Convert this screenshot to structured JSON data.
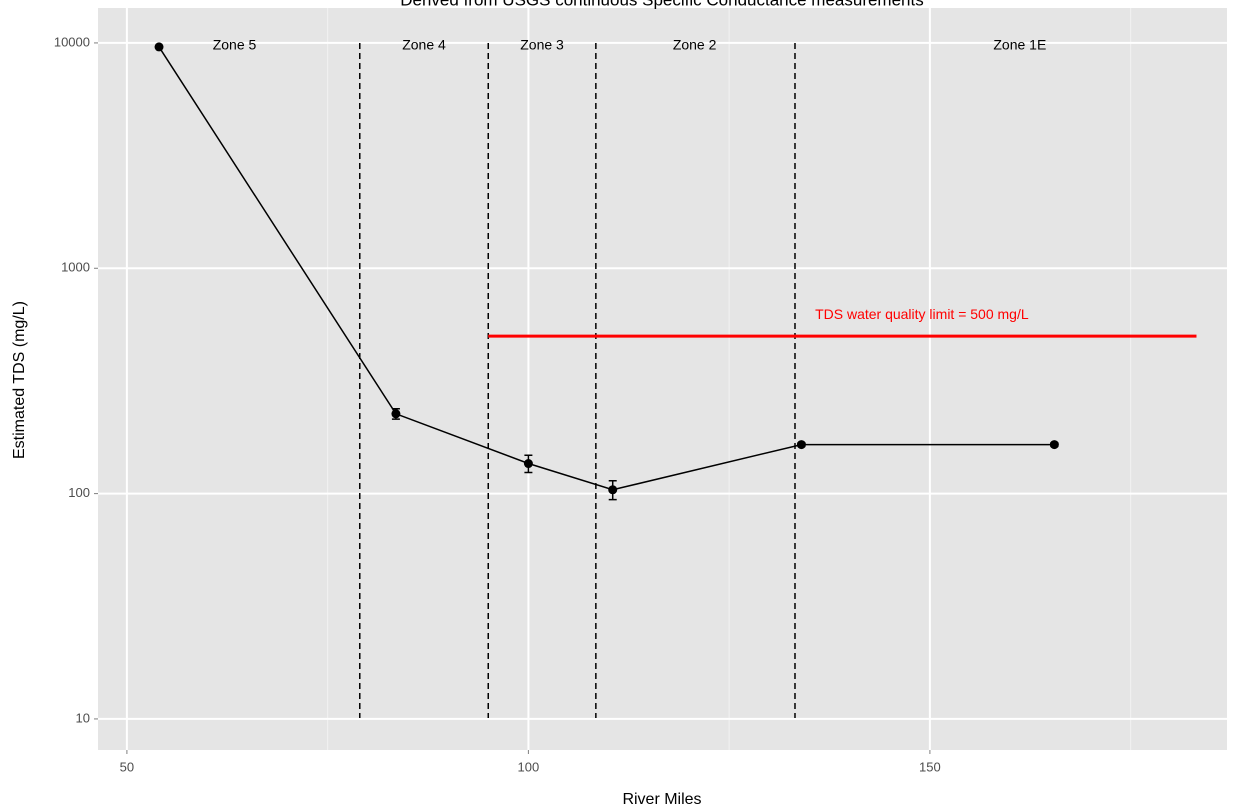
{
  "chart_data": {
    "type": "line",
    "title": "Derived from USGS continuous Specific Conductance measurements",
    "x_label": "River Miles",
    "y_label": "Estimated TDS (mg/L)",
    "x": [
      54,
      83.5,
      100,
      110.5,
      134,
      165.5
    ],
    "values": [
      9600,
      226,
      136,
      104,
      165,
      165
    ],
    "errors": [
      0,
      12,
      12,
      10,
      3,
      3
    ],
    "color": "#000000",
    "xlim": [
      46.4,
      187
    ],
    "ylim": [
      7.28,
      14290
    ],
    "log_y": true,
    "xticks": [
      50,
      100,
      150
    ],
    "x_minor_ticks": [
      75,
      125,
      175
    ],
    "yticks": [
      10,
      100,
      1000,
      10000
    ],
    "grid": true,
    "boundaries": [
      79,
      95,
      108.4,
      133.2
    ],
    "zones": [
      {
        "label": "Zone 5",
        "x": 63.4
      },
      {
        "label": "Zone 4",
        "x": 87
      },
      {
        "label": "Zone 3",
        "x": 101.7
      },
      {
        "label": "Zone 2",
        "x": 120.7
      },
      {
        "label": "Zone 1E",
        "x": 161.2
      }
    ],
    "limit": {
      "value": 500,
      "x_start": 95,
      "x_end": 183.2,
      "color": "#ff0000",
      "label": "TDS water quality limit = 500 mg/L",
      "label_x": 135.7
    }
  }
}
